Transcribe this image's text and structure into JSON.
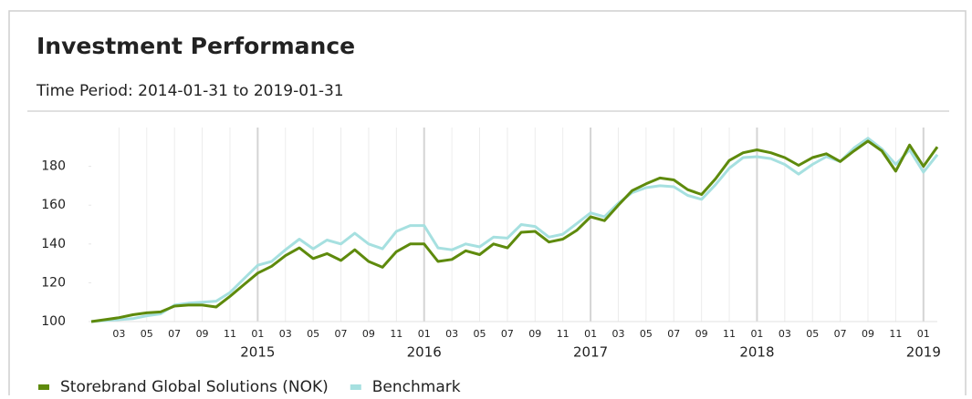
{
  "chart_data": {
    "type": "line",
    "title": "Investment Performance",
    "subtitle": "Time Period: 2014-01-31 to 2019-01-31",
    "categories": [
      null,
      null,
      "03",
      null,
      "05",
      null,
      "07",
      null,
      "09",
      null,
      "11",
      null,
      "01",
      null,
      "03",
      null,
      "05",
      null,
      "07",
      null,
      "09",
      null,
      "11",
      null,
      "01",
      null,
      "03",
      null,
      "05",
      null,
      "07",
      null,
      "09",
      null,
      "11",
      null,
      "01",
      null,
      "03",
      null,
      "05",
      null,
      "07",
      null,
      "09",
      null,
      "11",
      null,
      "01",
      null,
      "03",
      null,
      "05",
      null,
      "07",
      null,
      "09",
      null,
      "11",
      null,
      "01",
      null
    ],
    "years": [
      "2015",
      "2016",
      "2017",
      "2018",
      "2019"
    ],
    "ylim": [
      100,
      200
    ],
    "yticks": [
      100,
      120,
      140,
      160,
      180
    ],
    "grid": true,
    "series": [
      {
        "name": "Storebrand Global Solutions (NOK)",
        "color": "#5e8a0c",
        "values": [
          100,
          101,
          102,
          103.5,
          104.5,
          105,
          108,
          108.5,
          108.5,
          107.5,
          113,
          119,
          125,
          128.5,
          134,
          138,
          132.5,
          135,
          131.5,
          137,
          131,
          128,
          136,
          140,
          140,
          131,
          132,
          136.5,
          134.5,
          140,
          138,
          146,
          146.5,
          141,
          142.5,
          147,
          154,
          152,
          160,
          167.5,
          171,
          174,
          173,
          168,
          165.5,
          173.5,
          183,
          187,
          188.5,
          187,
          184.5,
          180.5,
          184.5,
          186.5,
          182.5,
          188,
          193,
          188,
          177.5,
          191,
          180,
          190
        ]
      },
      {
        "name": "Benchmark",
        "color": "#a6e0e0",
        "values": [
          100,
          100.5,
          101,
          101.5,
          103,
          104,
          108.5,
          109.5,
          110,
          110.5,
          115,
          122,
          129,
          131,
          137,
          142.5,
          137.5,
          142,
          140,
          145.5,
          140,
          137.5,
          146.5,
          149.5,
          149.5,
          138,
          137,
          140,
          138.5,
          143.5,
          143,
          150,
          149,
          143.5,
          145,
          150.5,
          156,
          154,
          161,
          166.5,
          169,
          170,
          169.5,
          165,
          163,
          170.5,
          179,
          184.5,
          185,
          184,
          181,
          176,
          181,
          185,
          182.5,
          189.5,
          194.5,
          189,
          181,
          188.5,
          177,
          186
        ]
      }
    ]
  }
}
